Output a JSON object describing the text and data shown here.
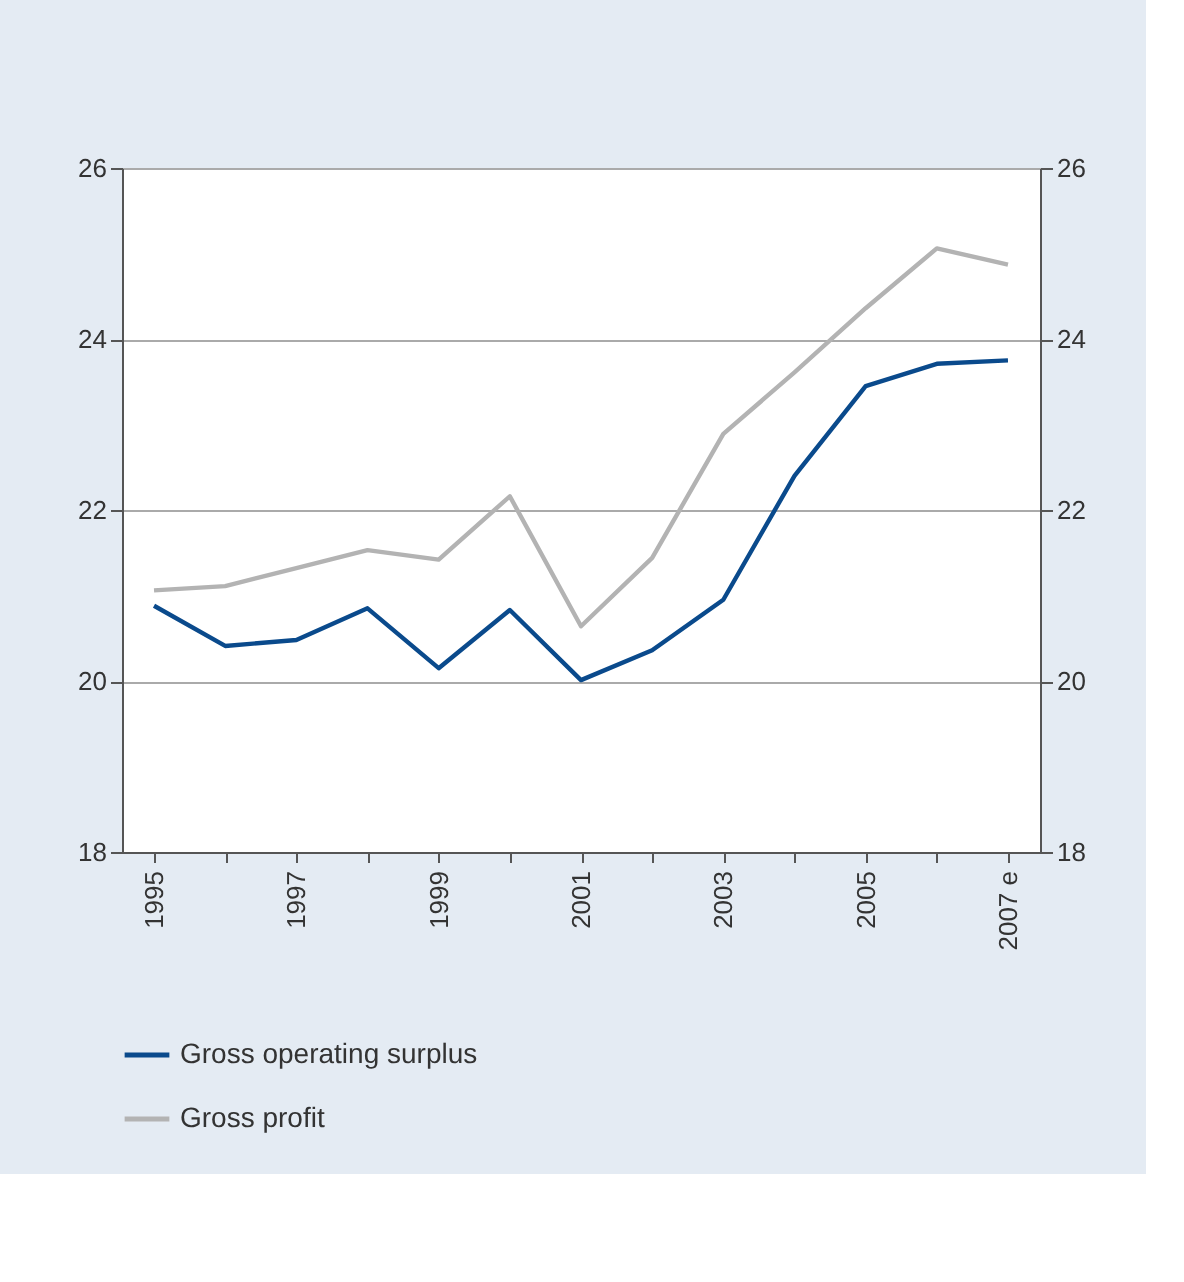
{
  "chart_data": {
    "type": "line",
    "categories": [
      "1995",
      null,
      "1997",
      null,
      "1999",
      null,
      "2001",
      null,
      "2003",
      null,
      "2005",
      null,
      "2007 e"
    ],
    "series": [
      {
        "name": "Gross operating surplus",
        "color": "#0a4a8c",
        "values": [
          20.88,
          20.41,
          20.48,
          20.85,
          20.15,
          20.83,
          20.01,
          20.36,
          20.95,
          22.4,
          23.45,
          23.71,
          23.75
        ]
      },
      {
        "name": "Gross profit",
        "color": "#b3b3b3",
        "values": [
          21.06,
          21.11,
          21.32,
          21.53,
          21.42,
          22.16,
          20.64,
          21.44,
          22.89,
          23.61,
          24.36,
          25.06,
          24.87
        ]
      }
    ],
    "ylim": [
      18,
      26
    ],
    "yticks": [
      18,
      20,
      22,
      24,
      26
    ],
    "y2lim": [
      18,
      26
    ],
    "y2ticks": [
      18,
      20,
      22,
      24,
      26
    ],
    "grid": "y",
    "legend": "bottom",
    "marker": "none",
    "line_style": "solid"
  }
}
